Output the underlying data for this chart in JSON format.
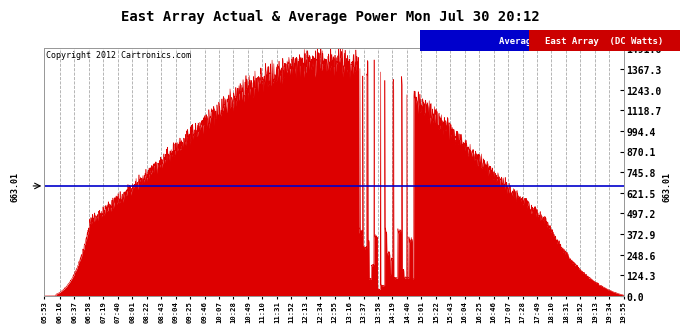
{
  "title": "East Array Actual & Average Power Mon Jul 30 20:12",
  "copyright": "Copyright 2012 Cartronics.com",
  "ymax": 1491.6,
  "ymin": 0.0,
  "yticks": [
    0.0,
    124.3,
    248.6,
    372.9,
    497.2,
    621.5,
    745.8,
    870.1,
    994.4,
    1118.7,
    1243.0,
    1367.3,
    1491.6
  ],
  "avg_line": 663.01,
  "legend_labels": [
    "Average  (DC Watts)",
    "East Array  (DC Watts)"
  ],
  "legend_bg_colors": [
    "#0000cc",
    "#cc0000"
  ],
  "plot_bg": "#ffffff",
  "fig_bg": "#ffffff",
  "grid_color": "#aaaaaa",
  "area_color": "#dd0000",
  "avg_line_color": "#0000cc",
  "title_color": "#000000",
  "x_labels": [
    "05:53",
    "06:16",
    "06:37",
    "06:58",
    "07:19",
    "07:40",
    "08:01",
    "08:22",
    "08:43",
    "09:04",
    "09:25",
    "09:46",
    "10:07",
    "10:28",
    "10:49",
    "11:10",
    "11:31",
    "11:52",
    "12:13",
    "12:34",
    "12:55",
    "13:16",
    "13:37",
    "13:58",
    "14:19",
    "14:40",
    "15:01",
    "15:22",
    "15:43",
    "16:04",
    "16:25",
    "16:46",
    "17:07",
    "17:28",
    "17:49",
    "18:10",
    "18:31",
    "18:52",
    "19:13",
    "19:34",
    "19:55"
  ]
}
